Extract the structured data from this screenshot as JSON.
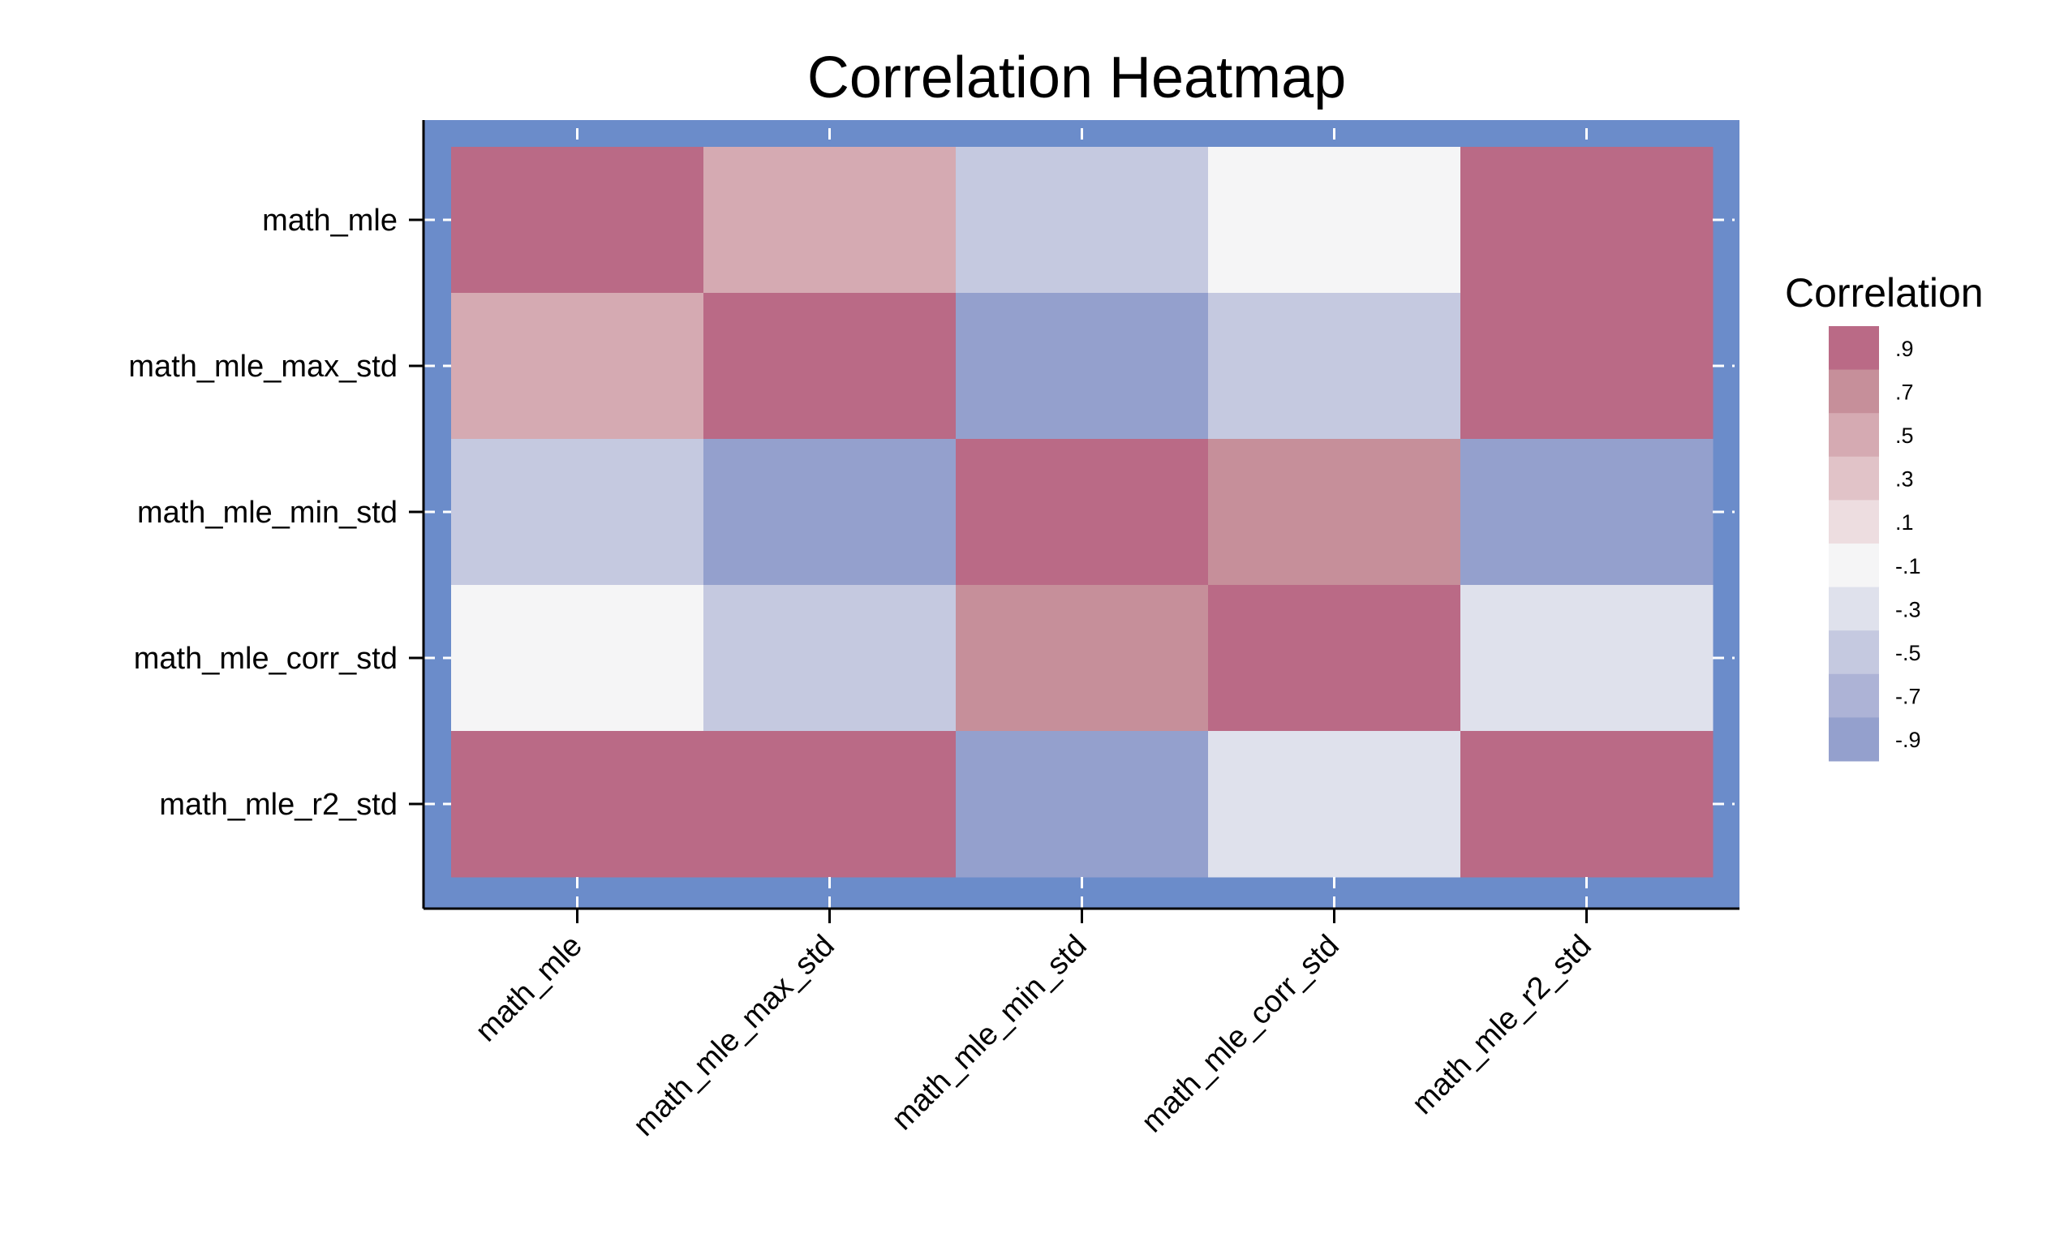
{
  "chart_data": {
    "type": "heatmap",
    "title": "Correlation Heatmap",
    "xlabel": "",
    "ylabel": "",
    "x_categories": [
      "math_mle",
      "math_mle_max_std",
      "math_mle_min_std",
      "math_mle_corr_std",
      "math_mle_r2_std"
    ],
    "y_categories": [
      "math_mle",
      "math_mle_max_std",
      "math_mle_min_std",
      "math_mle_corr_std",
      "math_mle_r2_std"
    ],
    "values": [
      [
        0.9,
        0.5,
        -0.5,
        -0.1,
        0.9
      ],
      [
        0.5,
        0.9,
        -0.9,
        -0.5,
        0.9
      ],
      [
        -0.5,
        -0.9,
        0.9,
        0.7,
        -0.9
      ],
      [
        -0.1,
        -0.5,
        0.7,
        0.9,
        -0.3
      ],
      [
        0.9,
        0.9,
        -0.9,
        -0.3,
        0.9
      ]
    ],
    "grid": false,
    "plot_background": "#6b8cca",
    "legend": {
      "title": "Correlation",
      "position": "right",
      "bins": [
        {
          "label": ".9",
          "value": 0.9,
          "color": "#ba6a86"
        },
        {
          "label": ".7",
          "value": 0.7,
          "color": "#c68f9a"
        },
        {
          "label": ".5",
          "value": 0.5,
          "color": "#d5aab2"
        },
        {
          "label": ".3",
          "value": 0.3,
          "color": "#e1c3c8"
        },
        {
          "label": ".1",
          "value": 0.1,
          "color": "#eddde0"
        },
        {
          "label": "-.1",
          "value": -0.1,
          "color": "#f5f5f6"
        },
        {
          "label": "-.3",
          "value": -0.3,
          "color": "#dfe1ec"
        },
        {
          "label": "-.5",
          "value": -0.5,
          "color": "#c5c9e0"
        },
        {
          "label": "-.7",
          "value": -0.7,
          "color": "#adb3d6"
        },
        {
          "label": "-.9",
          "value": -0.9,
          "color": "#94a0cd"
        }
      ]
    }
  }
}
